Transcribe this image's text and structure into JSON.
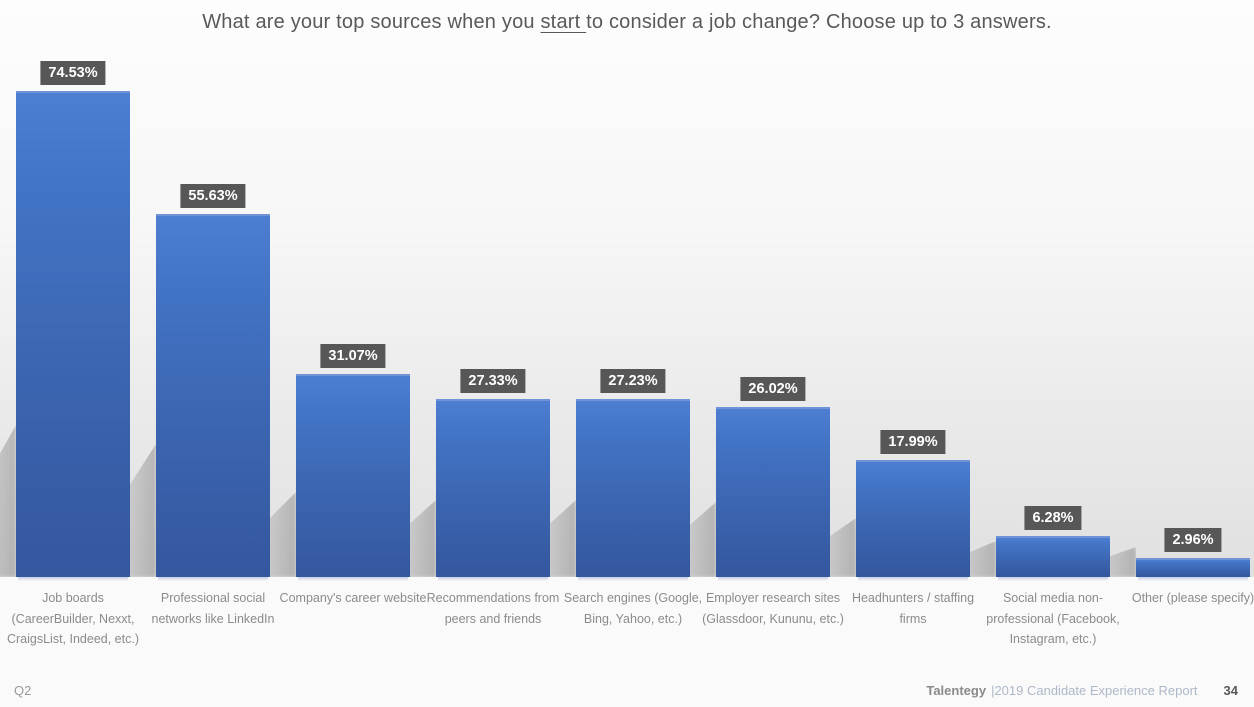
{
  "title": {
    "pre": "What are your top sources when you ",
    "underlined": "start ",
    "post": "to consider a job change? Choose up to 3 answers."
  },
  "chart_data": {
    "type": "bar",
    "title": "What are your top sources when you start to consider a job change? Choose up to 3 answers.",
    "categories": [
      "Job boards (CareerBuilder, Nexxt, CraigsList, Indeed, etc.)",
      "Professional social networks like LinkedIn",
      "Company's career website",
      "Recommendations from peers and friends",
      "Search engines (Google, Bing, Yahoo, etc.)",
      "Employer research sites (Glassdoor, Kununu, etc.)",
      "Headhunters / staffing firms",
      "Social media non-professional (Facebook, Instagram, etc.)",
      "Other (please specify)"
    ],
    "values": [
      74.53,
      55.63,
      31.07,
      27.33,
      27.23,
      26.02,
      17.99,
      6.28,
      2.96
    ],
    "value_labels": [
      "74.53%",
      "55.63%",
      "31.07%",
      "27.33%",
      "27.23%",
      "26.02%",
      "17.99%",
      "6.28%",
      "2.96%"
    ],
    "xlabel": "",
    "ylabel": "",
    "ylim": [
      0,
      80
    ],
    "grid": false,
    "legend": null,
    "colors": {
      "bar_top": "#4d7ed2",
      "bar_bottom": "#34579e",
      "badge_bg": "#575757",
      "badge_text": "#ffffff",
      "title_text": "#595959",
      "category_text": "#8b8b8b"
    }
  },
  "footer": {
    "question_ref": "Q2",
    "brand": "Talentegy",
    "report": "|2019 Candidate Experience Report",
    "page": "34"
  }
}
